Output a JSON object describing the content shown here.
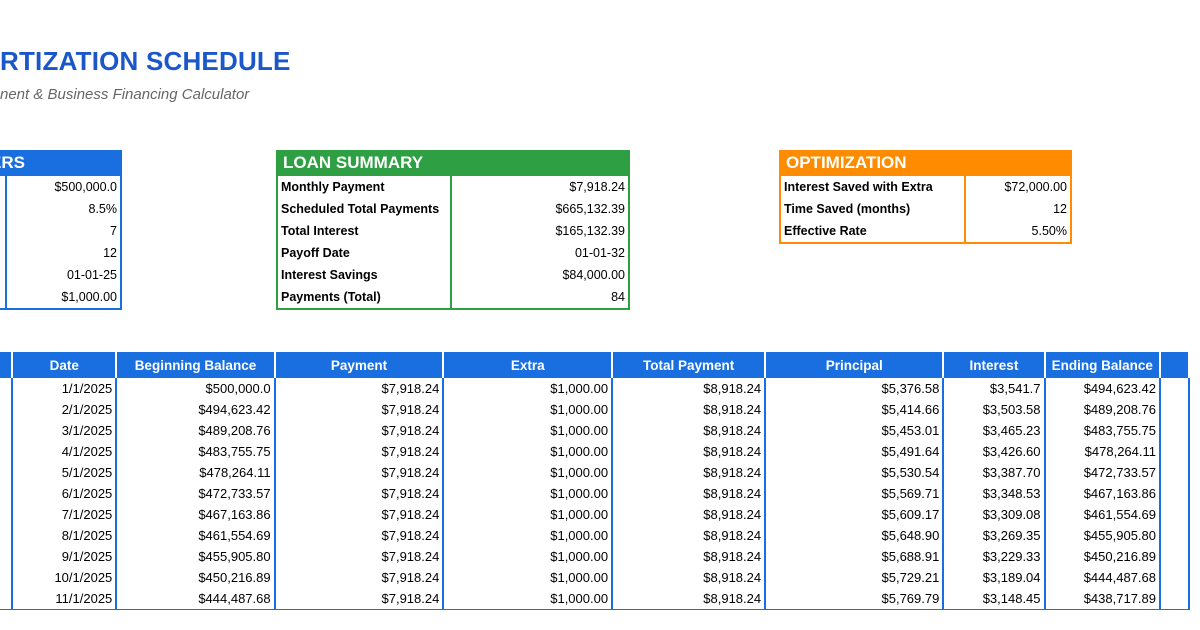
{
  "header": {
    "title": "RTIZATION SCHEDULE",
    "subtitle": "nent & Business Financing Calculator"
  },
  "params": {
    "title": "ERS",
    "rows": [
      {
        "label": "",
        "value": "$500,000.0"
      },
      {
        "label": ")",
        "value": "8.5%"
      },
      {
        "label": "",
        "value": "7"
      },
      {
        "label": "",
        "value": "12"
      },
      {
        "label": "",
        "value": "01-01-25"
      },
      {
        "label": "",
        "value": "$1,000.00"
      }
    ]
  },
  "loan_summary": {
    "title": "LOAN SUMMARY",
    "rows": [
      {
        "label": "Monthly Payment",
        "value": "$7,918.24"
      },
      {
        "label": "Scheduled Total Payments",
        "value": "$665,132.39"
      },
      {
        "label": "Total Interest",
        "value": "$165,132.39"
      },
      {
        "label": "Payoff Date",
        "value": "01-01-32"
      },
      {
        "label": "Interest Savings",
        "value": "$84,000.00"
      },
      {
        "label": "Payments (Total)",
        "value": "84"
      }
    ]
  },
  "optimization": {
    "title": "OPTIMIZATION",
    "rows": [
      {
        "label": "Interest Saved with Extra",
        "value": "$72,000.00"
      },
      {
        "label": "Time Saved  (months)",
        "value": "12"
      },
      {
        "label": "Effective Rate",
        "value": "5.50%"
      }
    ]
  },
  "schedule": {
    "columns": [
      "",
      "Date",
      "Beginning Balance",
      "Payment",
      "Extra",
      "Total Payment",
      "Principal",
      "Interest",
      "Ending Balance",
      ""
    ],
    "rows": [
      [
        "",
        "1/1/2025",
        "$500,000.0",
        "$7,918.24",
        "$1,000.00",
        "$8,918.24",
        "$5,376.58",
        "$3,541.7",
        "$494,623.42",
        ""
      ],
      [
        "",
        "2/1/2025",
        "$494,623.42",
        "$7,918.24",
        "$1,000.00",
        "$8,918.24",
        "$5,414.66",
        "$3,503.58",
        "$489,208.76",
        ""
      ],
      [
        "",
        "3/1/2025",
        "$489,208.76",
        "$7,918.24",
        "$1,000.00",
        "$8,918.24",
        "$5,453.01",
        "$3,465.23",
        "$483,755.75",
        ""
      ],
      [
        "",
        "4/1/2025",
        "$483,755.75",
        "$7,918.24",
        "$1,000.00",
        "$8,918.24",
        "$5,491.64",
        "$3,426.60",
        "$478,264.11",
        ""
      ],
      [
        "",
        "5/1/2025",
        "$478,264.11",
        "$7,918.24",
        "$1,000.00",
        "$8,918.24",
        "$5,530.54",
        "$3,387.70",
        "$472,733.57",
        ""
      ],
      [
        "",
        "6/1/2025",
        "$472,733.57",
        "$7,918.24",
        "$1,000.00",
        "$8,918.24",
        "$5,569.71",
        "$3,348.53",
        "$467,163.86",
        ""
      ],
      [
        "",
        "7/1/2025",
        "$467,163.86",
        "$7,918.24",
        "$1,000.00",
        "$8,918.24",
        "$5,609.17",
        "$3,309.08",
        "$461,554.69",
        ""
      ],
      [
        "",
        "8/1/2025",
        "$461,554.69",
        "$7,918.24",
        "$1,000.00",
        "$8,918.24",
        "$5,648.90",
        "$3,269.35",
        "$455,905.80",
        ""
      ],
      [
        "",
        "9/1/2025",
        "$455,905.80",
        "$7,918.24",
        "$1,000.00",
        "$8,918.24",
        "$5,688.91",
        "$3,229.33",
        "$450,216.89",
        ""
      ],
      [
        "",
        "10/1/2025",
        "$450,216.89",
        "$7,918.24",
        "$1,000.00",
        "$8,918.24",
        "$5,729.21",
        "$3,189.04",
        "$444,487.68",
        ""
      ],
      [
        "",
        "11/1/2025",
        "$444,487.68",
        "$7,918.24",
        "$1,000.00",
        "$8,918.24",
        "$5,769.79",
        "$3,148.45",
        "$438,717.89",
        ""
      ]
    ]
  },
  "colors": {
    "title_blue": "#1b57c9",
    "params_blue": "#1a6fe0",
    "summary_green": "#2ea043",
    "optimization_orange": "#ff8c00"
  }
}
